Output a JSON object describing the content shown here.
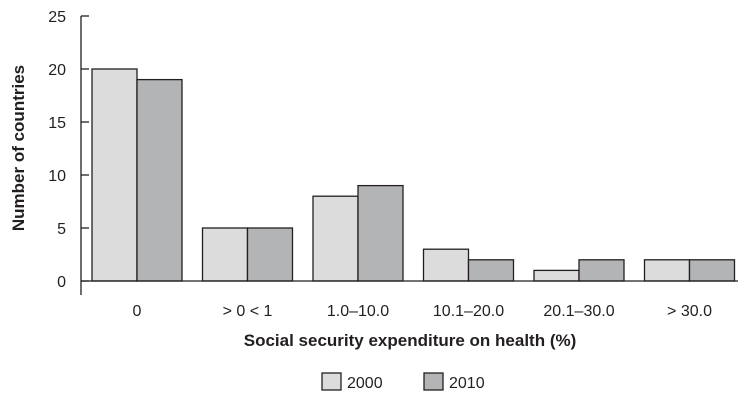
{
  "chart_data": {
    "type": "bar",
    "categories": [
      "0",
      "> 0 < 1",
      "1.0–10.0",
      "10.1–20.0",
      "20.1–30.0",
      "> 30.0"
    ],
    "series": [
      {
        "name": "2000",
        "values": [
          20,
          5,
          8,
          3,
          1,
          2
        ],
        "color": "#dcdcdd"
      },
      {
        "name": "2010",
        "values": [
          19,
          5,
          9,
          2,
          2,
          2
        ],
        "color": "#b3b4b6"
      }
    ],
    "xlabel": "Social security expenditure on health (%)",
    "ylabel": "Number of countries",
    "ylim": [
      0,
      25
    ],
    "yticks": [
      0,
      5,
      10,
      15,
      20,
      25
    ],
    "grid": false,
    "legend_placement": "bottom-center"
  }
}
